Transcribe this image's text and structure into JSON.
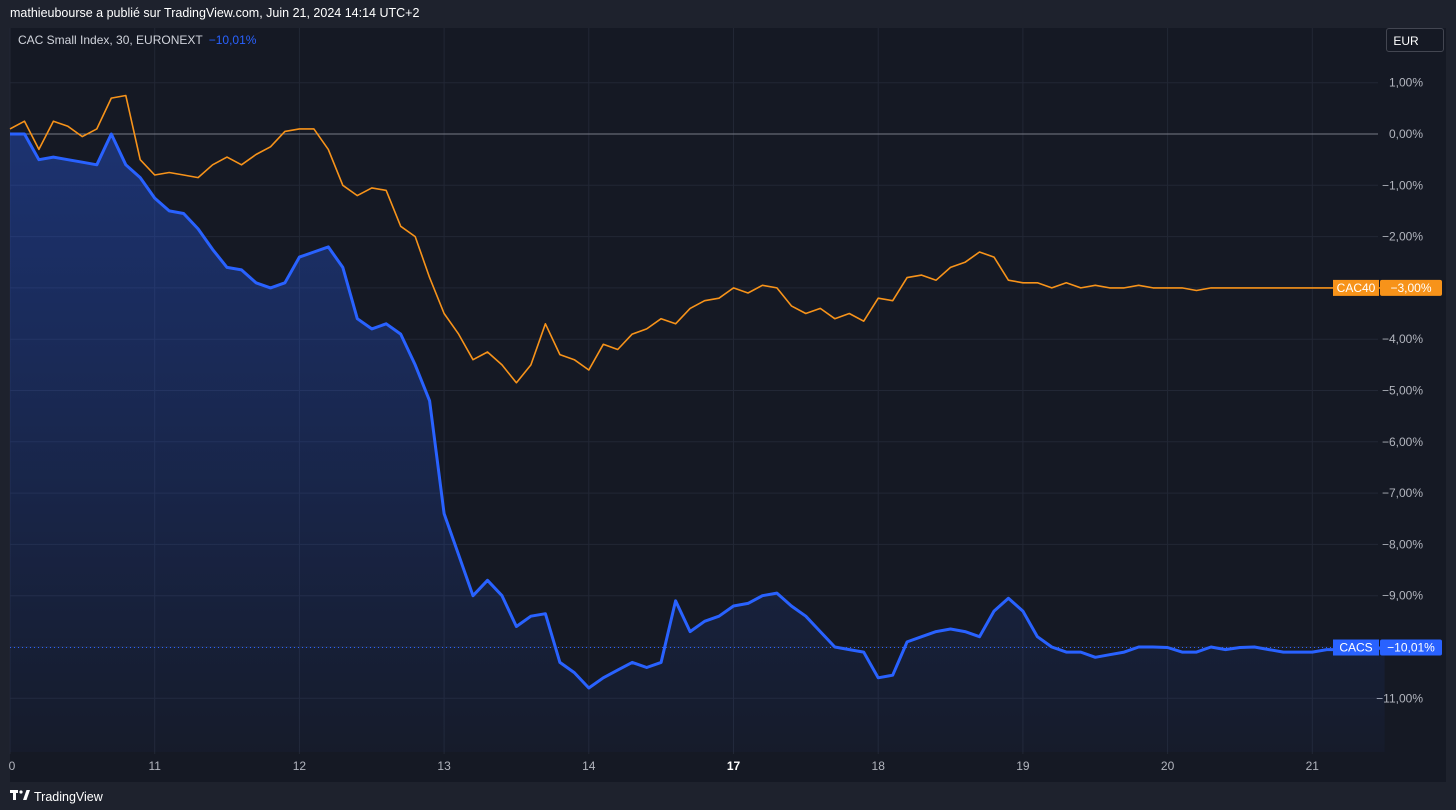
{
  "header": {
    "published": "mathieubourse a publié sur TradingView.com, Juin 21, 2024 14:14 UTC+2"
  },
  "legend": {
    "symbol": "CAC Small Index, 30, EURONEXT",
    "change": "−10,01%"
  },
  "currency_button": "EUR",
  "footer": {
    "brand": "TradingView",
    "logo_icon": "tradingview-logo-icon"
  },
  "colors": {
    "cacs": "#2962ff",
    "cac40": "#f7931a",
    "background": "#151924",
    "grid": "#222735"
  },
  "chart_data": {
    "type": "line",
    "title": "CAC Small Index, 30, EURONEXT",
    "xlabel": "",
    "ylabel": "",
    "ylim": [
      -11.9,
      1.55
    ],
    "y_ticks": [
      1,
      0,
      -1,
      -2,
      -3,
      -4,
      -5,
      -6,
      -7,
      -8,
      -9,
      -10,
      -11
    ],
    "y_tick_labels": [
      "1,00%",
      "0,00%",
      "−1,00%",
      "−2,00%",
      "−3,00%",
      "−4,00%",
      "−5,00%",
      "−6,00%",
      "−7,00%",
      "−8,00%",
      "−9,00%",
      "−10,00%",
      "−11,00%"
    ],
    "x_ticks": [
      {
        "label": "0",
        "pos": 0,
        "bold": false
      },
      {
        "label": "11",
        "pos": 1,
        "bold": false
      },
      {
        "label": "12",
        "pos": 2,
        "bold": false
      },
      {
        "label": "13",
        "pos": 3,
        "bold": false
      },
      {
        "label": "14",
        "pos": 4,
        "bold": false
      },
      {
        "label": "17",
        "pos": 5,
        "bold": true
      },
      {
        "label": "18",
        "pos": 6,
        "bold": false
      },
      {
        "label": "19",
        "pos": 7,
        "bold": false
      },
      {
        "label": "20",
        "pos": 8,
        "bold": false
      },
      {
        "label": "21",
        "pos": 9,
        "bold": false
      }
    ],
    "x_range": [
      0,
      9.9
    ],
    "series": [
      {
        "name": "CACS",
        "last_label": "−10,01%",
        "color": "#2962ff",
        "x": [
          0,
          0.1,
          0.2,
          0.3,
          0.4,
          0.5,
          0.6,
          0.7,
          0.8,
          0.9,
          1.0,
          1.1,
          1.2,
          1.3,
          1.4,
          1.5,
          1.6,
          1.7,
          1.8,
          1.9,
          2.0,
          2.1,
          2.2,
          2.3,
          2.4,
          2.5,
          2.6,
          2.7,
          2.8,
          2.9,
          3.0,
          3.1,
          3.2,
          3.3,
          3.4,
          3.5,
          3.6,
          3.7,
          3.8,
          3.9,
          4.0,
          4.1,
          4.2,
          4.3,
          4.4,
          4.5,
          4.6,
          4.7,
          4.8,
          4.9,
          5.0,
          5.1,
          5.2,
          5.3,
          5.4,
          5.5,
          5.6,
          5.7,
          5.8,
          5.9,
          6.0,
          6.1,
          6.2,
          6.3,
          6.4,
          6.5,
          6.6,
          6.7,
          6.8,
          6.9,
          7.0,
          7.1,
          7.2,
          7.3,
          7.4,
          7.5,
          7.6,
          7.7,
          7.8,
          7.9,
          8.0,
          8.1,
          8.2,
          8.3,
          8.4,
          8.5,
          8.6,
          8.7,
          8.8,
          8.9,
          9.0,
          9.1,
          9.2,
          9.3,
          9.4,
          9.5
        ],
        "y": [
          0,
          0,
          -0.5,
          -0.45,
          -0.5,
          -0.55,
          -0.6,
          0,
          -0.6,
          -0.85,
          -1.25,
          -1.5,
          -1.55,
          -1.85,
          -2.25,
          -2.6,
          -2.65,
          -2.9,
          -3.0,
          -2.9,
          -2.4,
          -2.3,
          -2.2,
          -2.6,
          -3.6,
          -3.8,
          -3.7,
          -3.9,
          -4.5,
          -5.2,
          -7.4,
          -8.2,
          -9.0,
          -8.7,
          -9.0,
          -9.6,
          -9.4,
          -9.35,
          -10.3,
          -10.5,
          -10.8,
          -10.6,
          -10.45,
          -10.3,
          -10.4,
          -10.3,
          -9.1,
          -9.7,
          -9.5,
          -9.4,
          -9.2,
          -9.15,
          -9.0,
          -8.95,
          -9.2,
          -9.4,
          -9.7,
          -10.0,
          -10.05,
          -10.1,
          -10.6,
          -10.55,
          -9.9,
          -9.8,
          -9.7,
          -9.65,
          -9.7,
          -9.8,
          -9.3,
          -9.05,
          -9.3,
          -9.8,
          -10.0,
          -10.1,
          -10.1,
          -10.2,
          -10.15,
          -10.1,
          -10.0,
          -10.0,
          -10.01,
          -10.1,
          -10.1,
          -10.0,
          -10.05,
          -10.01,
          -10.0,
          -10.05,
          -10.1,
          -10.1,
          -10.1,
          -10.05,
          -10.05,
          -10.01,
          -10.05,
          -10.01
        ]
      },
      {
        "name": "CAC40",
        "last_label": "−3,00%",
        "color": "#f7931a",
        "x": [
          0,
          0.1,
          0.2,
          0.3,
          0.4,
          0.5,
          0.6,
          0.7,
          0.8,
          0.9,
          1.0,
          1.1,
          1.2,
          1.3,
          1.4,
          1.5,
          1.6,
          1.7,
          1.8,
          1.9,
          2.0,
          2.1,
          2.2,
          2.3,
          2.4,
          2.5,
          2.6,
          2.7,
          2.8,
          2.9,
          3.0,
          3.1,
          3.2,
          3.3,
          3.4,
          3.5,
          3.6,
          3.7,
          3.8,
          3.9,
          4.0,
          4.1,
          4.2,
          4.3,
          4.4,
          4.5,
          4.6,
          4.7,
          4.8,
          4.9,
          5.0,
          5.1,
          5.2,
          5.3,
          5.4,
          5.5,
          5.6,
          5.7,
          5.8,
          5.9,
          6.0,
          6.1,
          6.2,
          6.3,
          6.4,
          6.5,
          6.6,
          6.7,
          6.8,
          6.9,
          7.0,
          7.1,
          7.2,
          7.3,
          7.4,
          7.5,
          7.6,
          7.7,
          7.8,
          7.9,
          8.0,
          8.1,
          8.2,
          8.3,
          8.4,
          8.5,
          8.6,
          8.7,
          8.8,
          8.9,
          9.0,
          9.1,
          9.2,
          9.3,
          9.4,
          9.5
        ],
        "y": [
          0.1,
          0.25,
          -0.3,
          0.25,
          0.15,
          -0.05,
          0.1,
          0.7,
          0.75,
          -0.5,
          -0.8,
          -0.75,
          -0.8,
          -0.85,
          -0.6,
          -0.45,
          -0.6,
          -0.4,
          -0.25,
          0.05,
          0.1,
          0.1,
          -0.3,
          -1.0,
          -1.2,
          -1.05,
          -1.1,
          -1.8,
          -2.0,
          -2.8,
          -3.5,
          -3.9,
          -4.4,
          -4.25,
          -4.5,
          -4.85,
          -4.5,
          -3.7,
          -4.3,
          -4.4,
          -4.6,
          -4.1,
          -4.2,
          -3.9,
          -3.8,
          -3.6,
          -3.7,
          -3.4,
          -3.25,
          -3.2,
          -3.0,
          -3.1,
          -2.95,
          -3.0,
          -3.35,
          -3.5,
          -3.4,
          -3.6,
          -3.5,
          -3.65,
          -3.2,
          -3.25,
          -2.8,
          -2.75,
          -2.85,
          -2.6,
          -2.5,
          -2.3,
          -2.4,
          -2.85,
          -2.9,
          -2.9,
          -3.0,
          -2.9,
          -3.0,
          -2.95,
          -3.0,
          -3.0,
          -2.95,
          -3.0,
          -3.0,
          -3.0,
          -3.05,
          -3.0,
          -3.0,
          -3.0,
          -3.0,
          -3.0,
          -3.0,
          -3.0,
          -3.0,
          -3.0,
          -3.0,
          -3.0,
          -3.0,
          -3.0
        ]
      }
    ],
    "grid": true,
    "area_fill_under": "CACS"
  }
}
